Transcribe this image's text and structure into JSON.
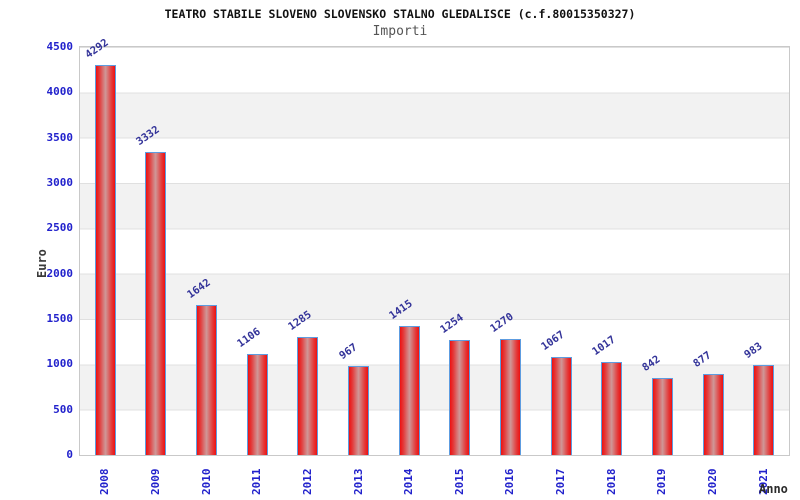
{
  "header": {
    "title": "TEATRO STABILE SLOVENO SLOVENSKO STALNO GLEDALISCE (c.f.80015350327)",
    "subtitle": "Importi"
  },
  "chart_data": {
    "type": "bar",
    "categories": [
      "2008",
      "2009",
      "2010",
      "2011",
      "2012",
      "2013",
      "2014",
      "2015",
      "2016",
      "2017",
      "2018",
      "2019",
      "2020",
      "2021"
    ],
    "values": [
      4292,
      3332,
      1642,
      1106,
      1285,
      967,
      1415,
      1254,
      1270,
      1067,
      1017,
      842,
      877,
      983
    ],
    "title": "TEATRO STABILE SLOVENO SLOVENSKO STALNO GLEDALISCE (c.f.80015350327)",
    "subtitle": "Importi",
    "xlabel": "Anno",
    "ylabel": "Euro",
    "ylim": [
      0,
      4500
    ],
    "ytick_step": 500,
    "yticks": [
      0,
      500,
      1000,
      1500,
      2000,
      2500,
      3000,
      3500,
      4000,
      4500
    ],
    "grid": "horizontal-bands",
    "legend": "none",
    "colors": {
      "bar_edge_red": "#ee1111",
      "bar_center": "#cf9898",
      "bar_border_blue": "#5d9ce0",
      "axis_text_blue": "#2222cc",
      "value_label_blue": "#333399",
      "band_gray": "#f2f2f2",
      "title_black": "#111111",
      "subtitle_gray": "#555555"
    }
  }
}
